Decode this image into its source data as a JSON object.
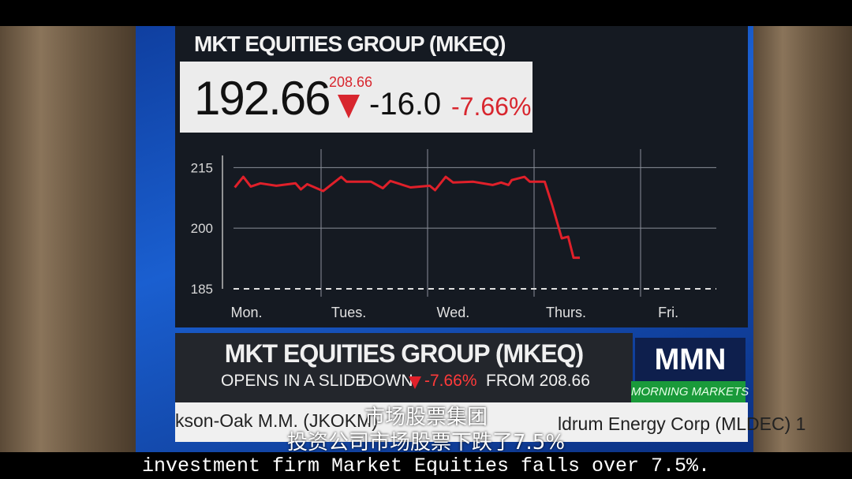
{
  "header": {
    "title": "MKT EQUITIES GROUP (MKEQ)",
    "price": "192.66",
    "previous": "208.66",
    "change": "-16.0",
    "change_pct": "-7.66%"
  },
  "chart_data": {
    "type": "line",
    "x": [
      0.19,
      0.27,
      0.34,
      0.43,
      0.58,
      0.76,
      0.81,
      0.87,
      1.02,
      1.19,
      1.24,
      1.47,
      1.58,
      1.65,
      1.84,
      2.02,
      2.07,
      2.17,
      2.24,
      2.43,
      2.61,
      2.69,
      2.76,
      2.79,
      2.91,
      2.96,
      3.1,
      3.17,
      3.26,
      3.32,
      3.37,
      3.43
    ],
    "series": [
      {
        "color": "#e0202a",
        "values": [
          210.1,
          212.7,
          210.3,
          211.1,
          210.5,
          211.1,
          209.6,
          210.9,
          209.2,
          212.7,
          211.5,
          211.5,
          209.9,
          211.7,
          210.1,
          210.5,
          209.4,
          212.7,
          211.3,
          211.5,
          210.7,
          211.3,
          210.7,
          211.9,
          212.7,
          211.5,
          211.5,
          205.7,
          197.5,
          197.9,
          192.7,
          192.7
        ]
      }
    ],
    "xlim": [
      0,
      5
    ],
    "xticks": [
      {
        "value": 0.3,
        "label": "Mon."
      },
      {
        "value": 1.26,
        "label": "Tues."
      },
      {
        "value": 2.24,
        "label": "Wed."
      },
      {
        "value": 3.3,
        "label": "Thurs."
      },
      {
        "value": 4.26,
        "label": "Fri."
      }
    ],
    "xgrid": [
      1,
      2,
      3,
      4
    ],
    "ylim": [
      185,
      218
    ],
    "yticks": [
      185,
      200,
      215
    ],
    "grid": true
  },
  "banner": {
    "headline": "MKT EQUITIES GROUP (MKEQ)",
    "line1": "OPENS IN A SLIDE",
    "line2": "DOWN",
    "line3": "-7.66%",
    "line4": "FROM 208.66"
  },
  "logo": {
    "name": "MMN",
    "show": "MORNING MARKETS"
  },
  "ticker": {
    "left": "kson-Oak M.M. (JKOKM)",
    "right": "ldrum Energy Corp (MLDEC) 1"
  },
  "subtitles": {
    "line1": "市场股票集团",
    "line2": "投资公司市场股票下跌了7.5%",
    "line3": "investment firm Market Equities falls over 7.5%."
  }
}
